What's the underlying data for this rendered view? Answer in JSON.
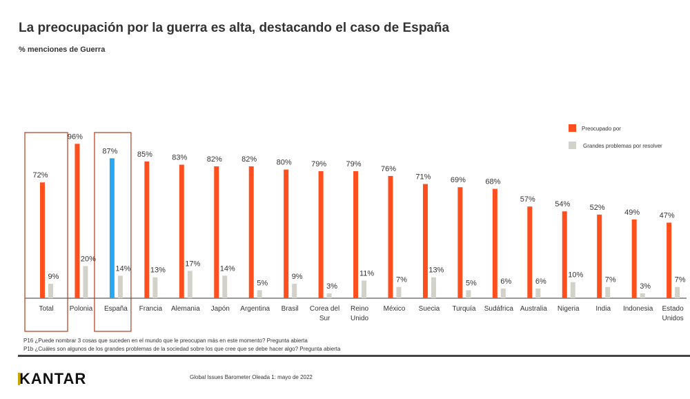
{
  "header": {
    "title": "La preocupación por la guerra es alta, destacando el caso de España",
    "subtitle": "% menciones de Guerra"
  },
  "chart_data": {
    "type": "bar",
    "categories": [
      "Total",
      "Polonia",
      "España",
      "Francia",
      "Alemania",
      "Japón",
      "Argentina",
      "Brasil",
      "Corea del Sur",
      "Reino Unido",
      "México",
      "Suecia",
      "Turquía",
      "Sudáfrica",
      "Australia",
      "Nigeria",
      "India",
      "Indonesia",
      "Estado Unidos"
    ],
    "series": [
      {
        "name": "Preocupado por",
        "color": "#ff4f1f",
        "values": [
          72,
          96,
          87,
          85,
          83,
          82,
          82,
          80,
          79,
          79,
          76,
          71,
          69,
          68,
          57,
          54,
          52,
          49,
          47
        ]
      },
      {
        "name": "Grandes problemas por resolver",
        "color": "#d3d2ca",
        "values": [
          9,
          20,
          14,
          13,
          17,
          14,
          5,
          9,
          3,
          11,
          7,
          13,
          5,
          6,
          6,
          10,
          7,
          3,
          7
        ]
      }
    ],
    "highlight_color": "#29a8ef",
    "highlighted_categories": [
      "Total",
      "España"
    ],
    "ylim": [
      0,
      100
    ],
    "legend": "top-right",
    "grid": false
  },
  "footer": {
    "notes": [
      "P16 ¿Puede nombrar 3 cosas que suceden en el mundo que le preocupan más en este momento? Pregunta abierta",
      "P1b ¿Cuáles son algunos de los grandes problemas de la sociedad sobre los que cree que se debe hacer algo? Pregunta abierta"
    ],
    "logo": "KANTAR",
    "source": "Global Issues Barometer Oleada 1: mayo de 2022"
  }
}
